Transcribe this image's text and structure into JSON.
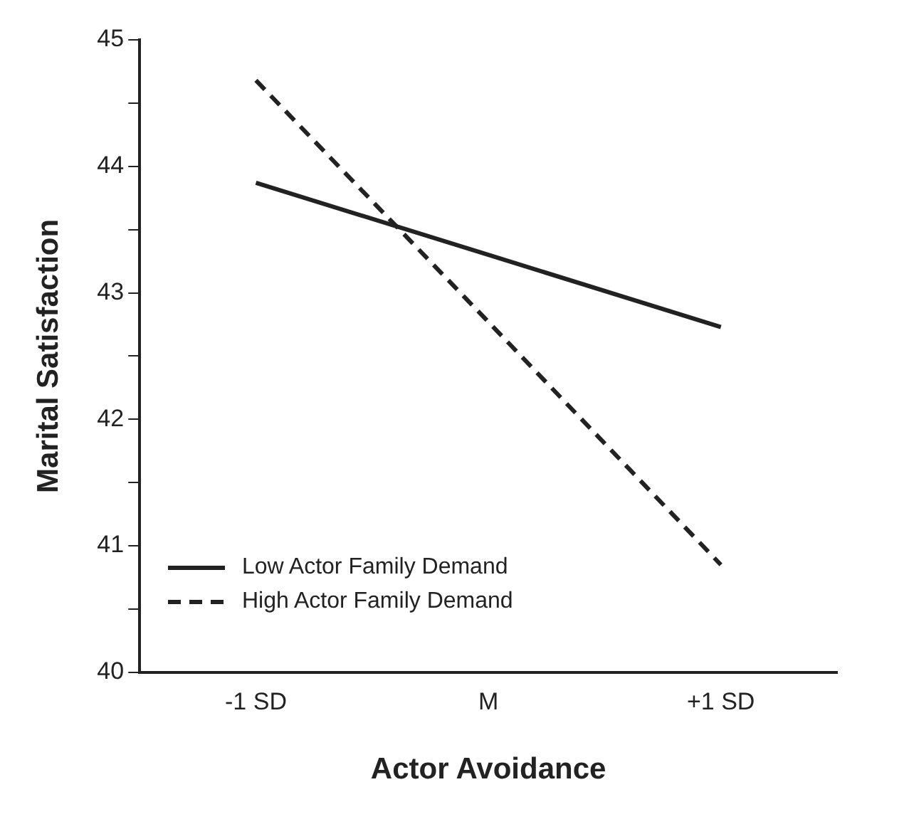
{
  "chart_data": {
    "type": "line",
    "xlabel": "Actor Avoidance",
    "ylabel": "Marital Satisfaction",
    "categories": [
      "-1 SD",
      "M",
      "+1 SD"
    ],
    "series": [
      {
        "name": "Low Actor Family Demand",
        "color": "#222222",
        "line_style": "solid",
        "values": [
          43.87,
          43.3,
          42.73
        ]
      },
      {
        "name": "High Actor Family Demand",
        "color": "#222222",
        "line_style": "dashed",
        "values": [
          44.68,
          42.77,
          40.85
        ]
      }
    ],
    "ylim": [
      40,
      45
    ],
    "yticks": [
      40,
      {
        "value": 40.5,
        "label": null
      },
      41,
      {
        "value": 41.5,
        "label": null
      },
      42,
      {
        "value": 42.5,
        "label": null
      },
      43,
      {
        "value": 43.5,
        "label": null
      },
      44,
      {
        "value": 44.5,
        "label": null
      },
      45
    ],
    "grid": false,
    "legend": "bottom left",
    "marker": "none"
  }
}
